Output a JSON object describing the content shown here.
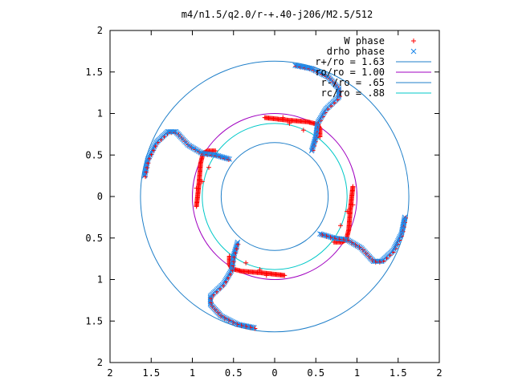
{
  "chart_data": {
    "type": "scatter",
    "title": "m4/n1.5/q2.0/r-+.40-j206/M2.5/512",
    "xlabel": "",
    "ylabel": "",
    "xlim": [
      -2,
      2
    ],
    "ylim": [
      -2,
      2
    ],
    "x_tick_values": [
      -2,
      -1.5,
      -1,
      -0.5,
      0,
      0.5,
      1,
      1.5,
      2
    ],
    "x_tick_labels": [
      "2",
      "1.5",
      "1",
      "0.5",
      "0",
      "0.5",
      "1",
      "1.5",
      "2"
    ],
    "y_tick_values": [
      2,
      1.5,
      1,
      0.5,
      0,
      -0.5,
      -1,
      -1.5,
      -2
    ],
    "y_tick_labels": [
      "2",
      "1.5",
      "1",
      "0.5",
      "0",
      "0.5",
      "1",
      "1.5",
      "2"
    ],
    "grid": false,
    "legend_position": "top-right",
    "series": [
      {
        "name": "W phase",
        "marker": "+",
        "color": "#ff0000"
      },
      {
        "name": "drho phase",
        "marker": "x",
        "color": "#1a86ea"
      },
      {
        "name": "r+/ro = 1.63",
        "kind": "circle",
        "radius": 1.63,
        "color": "#1f7fc9"
      },
      {
        "name": "ro/ro = 1.00",
        "kind": "circle",
        "radius": 1.0,
        "color": "#a000c0"
      },
      {
        "name": "r-/ro = .65",
        "kind": "circle",
        "radius": 0.65,
        "color": "#1f7fc9"
      },
      {
        "name": "rc/ro = .88",
        "kind": "circle",
        "radius": 0.88,
        "color": "#00c8c8"
      }
    ],
    "arms": {
      "count": 4,
      "blue_path": [
        [
          0.25,
          1.58
        ],
        [
          0.45,
          1.54
        ],
        [
          0.65,
          1.44
        ],
        [
          0.78,
          1.3
        ],
        [
          0.78,
          1.2
        ],
        [
          0.62,
          1.05
        ],
        [
          0.52,
          0.88
        ],
        [
          0.5,
          0.72
        ],
        [
          0.45,
          0.55
        ]
      ],
      "red_path": [
        [
          -0.12,
          0.95
        ],
        [
          0.15,
          0.92
        ],
        [
          0.4,
          0.9
        ],
        [
          0.52,
          0.87
        ],
        [
          0.55,
          0.82
        ],
        [
          0.55,
          0.72
        ]
      ],
      "outlier_points": [
        [
          0.35,
          0.8
        ],
        [
          0.18,
          0.88
        ],
        [
          0.1,
          0.95
        ]
      ]
    }
  }
}
